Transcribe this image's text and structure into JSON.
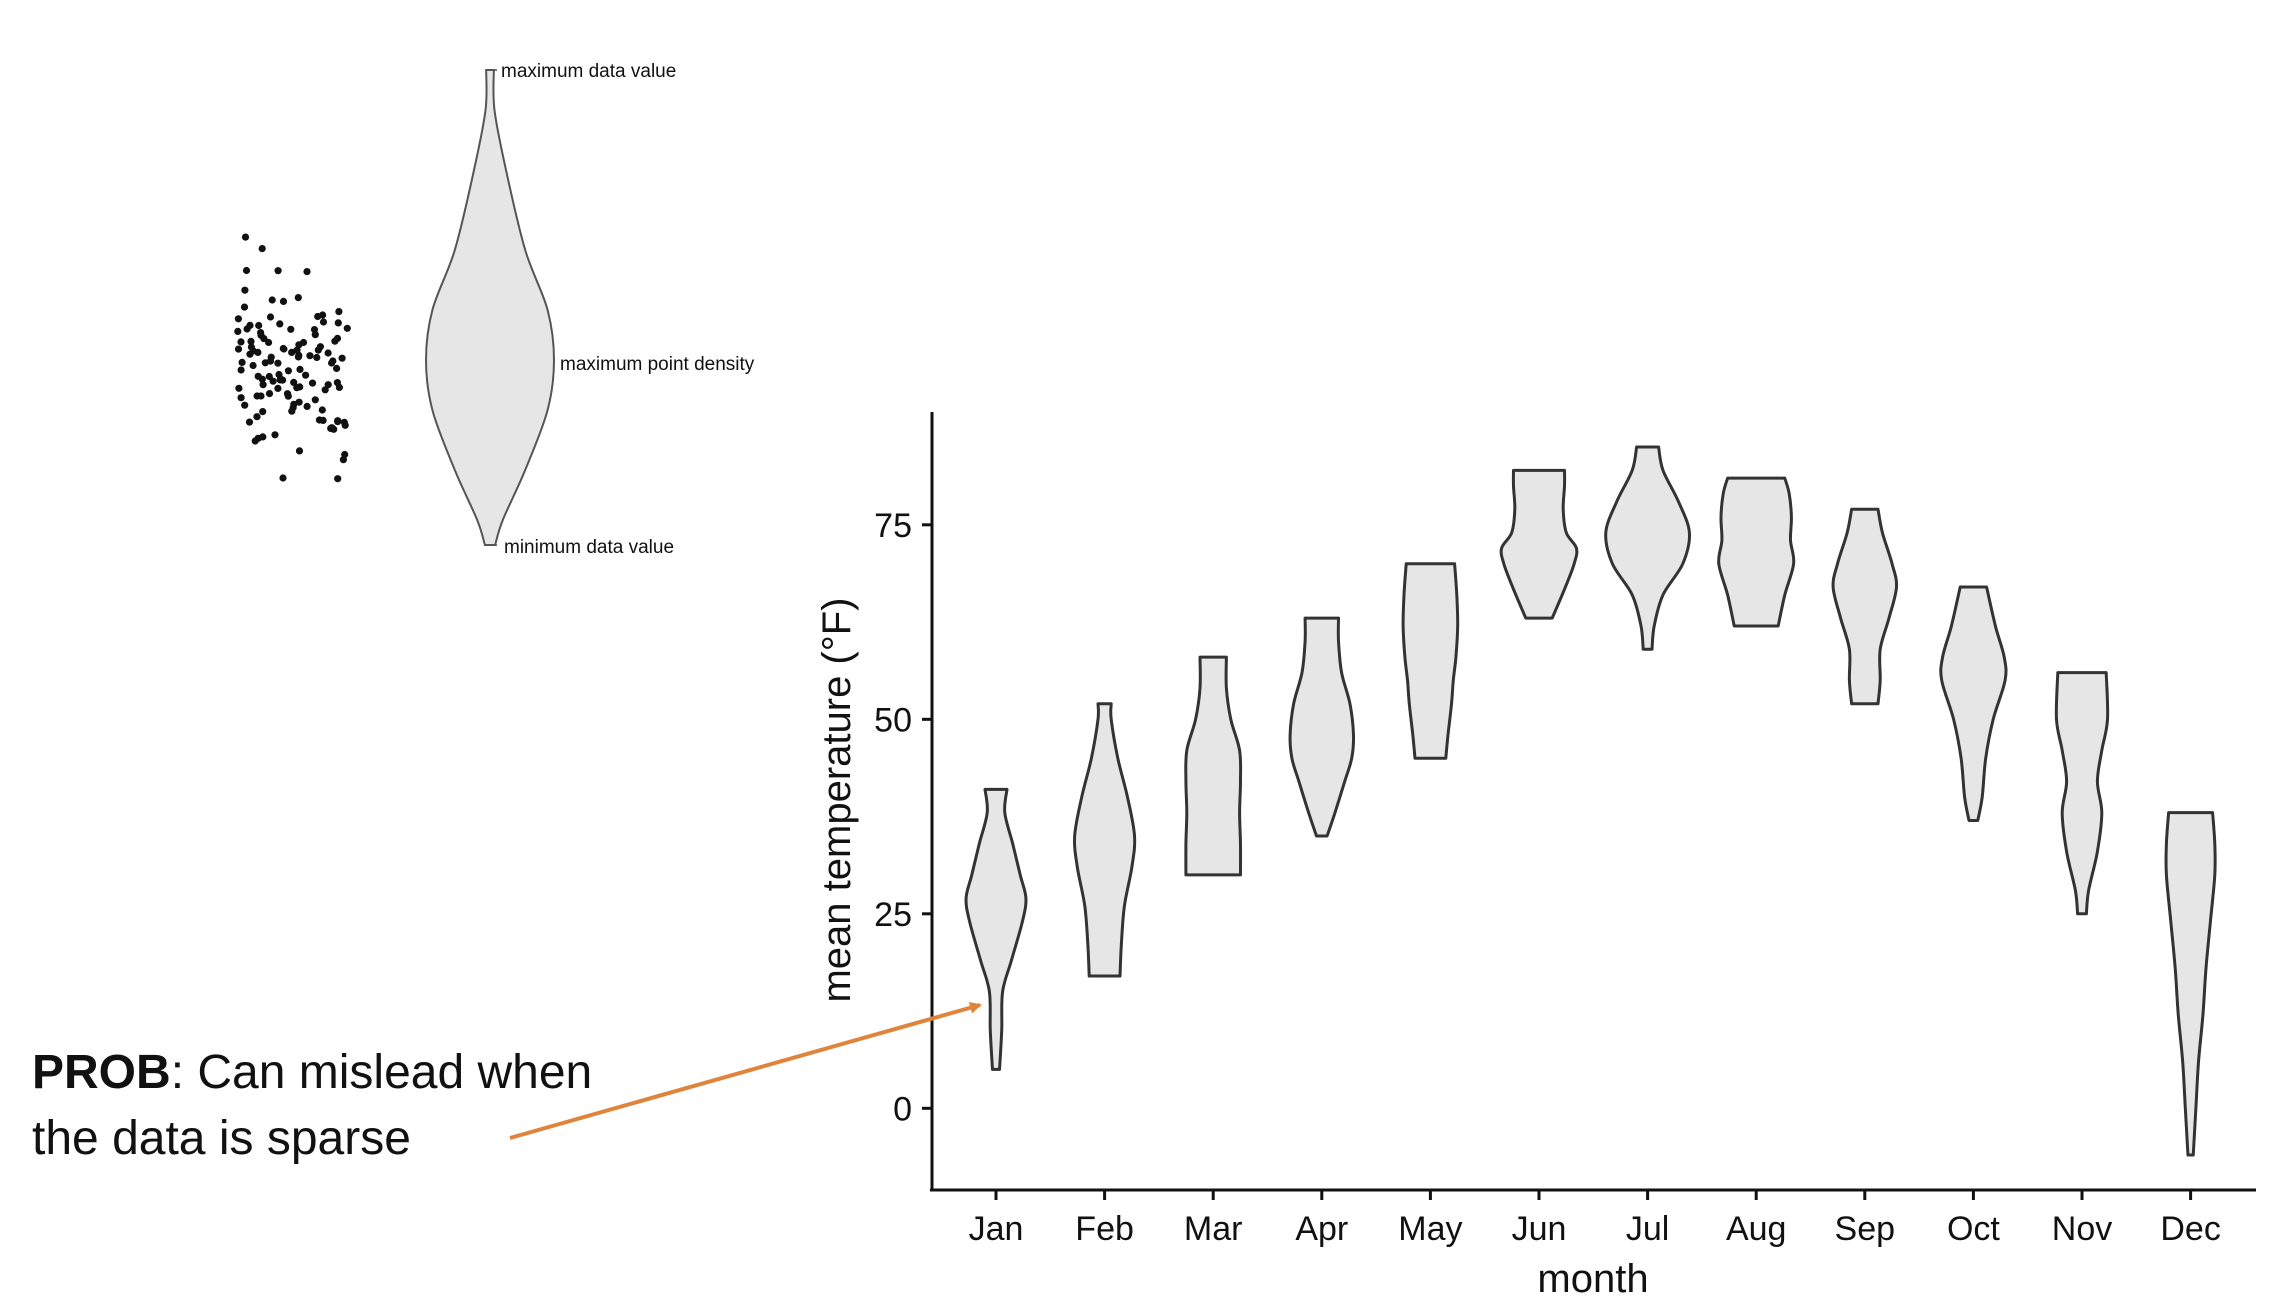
{
  "explainer": {
    "labels": {
      "max_value": "maximum data value",
      "max_density": "maximum point density",
      "min_value": "minimum data value"
    }
  },
  "callout": {
    "bold": "PROB",
    "text_line1": ": Can mislead when",
    "text_line2": "the data is sparse",
    "arrow_color": "#E0843C"
  },
  "chart_data": {
    "type": "violin",
    "xlabel": "month",
    "ylabel": "mean temperature (°F)",
    "ylim": [
      -10.5,
      89.5
    ],
    "yticks": [
      0,
      25,
      50,
      75
    ],
    "categories": [
      "Jan",
      "Feb",
      "Mar",
      "Apr",
      "May",
      "Jun",
      "Jul",
      "Aug",
      "Sep",
      "Oct",
      "Nov",
      "Dec"
    ],
    "violins": [
      {
        "month": "Jan",
        "min": 5,
        "max": 41,
        "profile": [
          [
            5,
            0.08
          ],
          [
            10,
            0.13
          ],
          [
            15,
            0.15
          ],
          [
            19,
            0.35
          ],
          [
            24,
            0.6
          ],
          [
            27,
            0.68
          ],
          [
            30,
            0.55
          ],
          [
            34,
            0.38
          ],
          [
            38,
            0.2
          ],
          [
            41,
            0.25
          ]
        ]
      },
      {
        "month": "Feb",
        "min": 17,
        "max": 52,
        "profile": [
          [
            17,
            0.35
          ],
          [
            21,
            0.38
          ],
          [
            26,
            0.45
          ],
          [
            31,
            0.62
          ],
          [
            35,
            0.68
          ],
          [
            40,
            0.52
          ],
          [
            45,
            0.3
          ],
          [
            50,
            0.15
          ],
          [
            52,
            0.15
          ]
        ]
      },
      {
        "month": "Mar",
        "min": 30,
        "max": 58,
        "profile": [
          [
            30,
            0.62
          ],
          [
            34,
            0.62
          ],
          [
            38,
            0.6
          ],
          [
            42,
            0.62
          ],
          [
            46,
            0.6
          ],
          [
            50,
            0.4
          ],
          [
            54,
            0.3
          ],
          [
            58,
            0.3
          ]
        ]
      },
      {
        "month": "Apr",
        "min": 35,
        "max": 63,
        "profile": [
          [
            35,
            0.12
          ],
          [
            38,
            0.3
          ],
          [
            42,
            0.52
          ],
          [
            45,
            0.68
          ],
          [
            48,
            0.72
          ],
          [
            52,
            0.64
          ],
          [
            56,
            0.45
          ],
          [
            60,
            0.38
          ],
          [
            63,
            0.38
          ]
        ]
      },
      {
        "month": "May",
        "min": 45,
        "max": 70,
        "profile": [
          [
            45,
            0.35
          ],
          [
            48,
            0.4
          ],
          [
            52,
            0.48
          ],
          [
            55,
            0.52
          ],
          [
            58,
            0.58
          ],
          [
            62,
            0.62
          ],
          [
            66,
            0.6
          ],
          [
            70,
            0.55
          ]
        ]
      },
      {
        "month": "Jun",
        "min": 63,
        "max": 82,
        "profile": [
          [
            63,
            0.3
          ],
          [
            67,
            0.6
          ],
          [
            70,
            0.8
          ],
          [
            72,
            0.85
          ],
          [
            74,
            0.62
          ],
          [
            77,
            0.55
          ],
          [
            80,
            0.58
          ],
          [
            82,
            0.58
          ]
        ]
      },
      {
        "month": "Jul",
        "min": 59,
        "max": 85,
        "profile": [
          [
            59,
            0.1
          ],
          [
            62,
            0.15
          ],
          [
            66,
            0.35
          ],
          [
            70,
            0.8
          ],
          [
            74,
            0.95
          ],
          [
            78,
            0.7
          ],
          [
            82,
            0.35
          ],
          [
            85,
            0.25
          ]
        ]
      },
      {
        "month": "Aug",
        "min": 62,
        "max": 81,
        "profile": [
          [
            62,
            0.5
          ],
          [
            66,
            0.65
          ],
          [
            70,
            0.85
          ],
          [
            73,
            0.78
          ],
          [
            76,
            0.8
          ],
          [
            79,
            0.75
          ],
          [
            81,
            0.65
          ]
        ]
      },
      {
        "month": "Sep",
        "min": 52,
        "max": 77,
        "profile": [
          [
            52,
            0.3
          ],
          [
            55,
            0.35
          ],
          [
            59,
            0.35
          ],
          [
            63,
            0.55
          ],
          [
            67,
            0.72
          ],
          [
            70,
            0.62
          ],
          [
            74,
            0.4
          ],
          [
            77,
            0.3
          ]
        ]
      },
      {
        "month": "Oct",
        "min": 37,
        "max": 67,
        "profile": [
          [
            37,
            0.1
          ],
          [
            40,
            0.2
          ],
          [
            45,
            0.28
          ],
          [
            50,
            0.45
          ],
          [
            55,
            0.72
          ],
          [
            58,
            0.7
          ],
          [
            62,
            0.5
          ],
          [
            67,
            0.3
          ]
        ]
      },
      {
        "month": "Nov",
        "min": 25,
        "max": 56,
        "profile": [
          [
            25,
            0.1
          ],
          [
            28,
            0.15
          ],
          [
            33,
            0.35
          ],
          [
            38,
            0.45
          ],
          [
            42,
            0.35
          ],
          [
            46,
            0.45
          ],
          [
            50,
            0.58
          ],
          [
            56,
            0.55
          ]
        ]
      },
      {
        "month": "Dec",
        "min": -6,
        "max": 38,
        "profile": [
          [
            -6,
            0.06
          ],
          [
            0,
            0.12
          ],
          [
            6,
            0.18
          ],
          [
            12,
            0.28
          ],
          [
            18,
            0.35
          ],
          [
            24,
            0.45
          ],
          [
            30,
            0.55
          ],
          [
            34,
            0.55
          ],
          [
            38,
            0.5
          ]
        ]
      }
    ],
    "fill_color": "#E6E6E6",
    "stroke_color": "#333333"
  }
}
